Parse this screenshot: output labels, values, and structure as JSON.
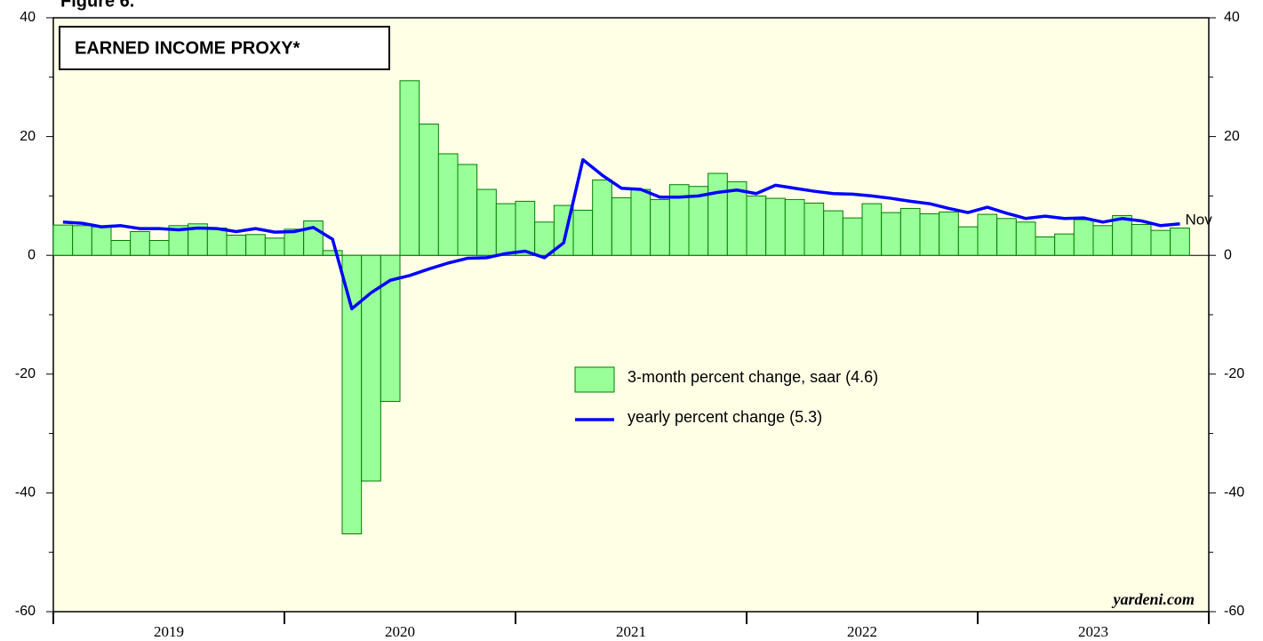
{
  "chart_data": {
    "type": "bar_line",
    "figure_label": "Figure 6.",
    "title": "EARNED INCOME PROXY*",
    "source": "yardeni.com",
    "annotation": "Nov",
    "categories": [
      null,
      null,
      null,
      null,
      null,
      null,
      null,
      null,
      null,
      null,
      null,
      null,
      null,
      null,
      null,
      null,
      null,
      null,
      null,
      null,
      null,
      null,
      null,
      null,
      null,
      null,
      null,
      null,
      null,
      null,
      null,
      null,
      null,
      null,
      null,
      null,
      null,
      null,
      null,
      null,
      null,
      null,
      null,
      null,
      null,
      null,
      null,
      null,
      null,
      null,
      null,
      null,
      null,
      null,
      null,
      null,
      null,
      null,
      null
    ],
    "year_groups": [
      "2019",
      "2020",
      "2021",
      "2022",
      "2023"
    ],
    "months_per_group": 12,
    "ylim": [
      -60,
      40
    ],
    "yticks": [
      -60,
      -40,
      -20,
      0,
      20,
      40
    ],
    "yminorticks": [
      -50,
      -30,
      -10,
      10,
      30
    ],
    "background": "#ffffe6",
    "series": [
      {
        "name": "3-month percent change, saar (4.6)",
        "kind": "bar",
        "color": "#99ff99",
        "edge": "#008000",
        "values": [
          5.1,
          5.0,
          4.8,
          2.5,
          4.0,
          2.5,
          5.0,
          5.3,
          4.6,
          3.4,
          3.5,
          2.9,
          4.4,
          5.8,
          0.8,
          -46.9,
          -38.0,
          -24.6,
          29.4,
          22.1,
          17.1,
          15.3,
          11.1,
          8.7,
          9.1,
          5.6,
          8.4,
          7.6,
          12.7,
          9.7,
          11.1,
          9.4,
          11.9,
          11.6,
          13.8,
          12.4,
          10.0,
          9.6,
          9.4,
          8.8,
          7.5,
          6.3,
          8.7,
          7.2,
          7.9,
          7.0,
          7.3,
          4.8,
          6.9,
          6.2,
          5.6,
          3.1,
          3.6,
          6.0,
          5.0,
          6.7,
          5.2,
          4.2,
          4.6
        ]
      },
      {
        "name": "yearly percent change (5.3)",
        "kind": "line",
        "color": "#0000ff",
        "values": [
          5.6,
          5.4,
          4.8,
          5.0,
          4.5,
          4.5,
          4.3,
          4.6,
          4.5,
          4.0,
          4.5,
          3.9,
          4.0,
          4.7,
          2.7,
          -9.0,
          -6.3,
          -4.2,
          -3.4,
          -2.3,
          -1.3,
          -0.5,
          -0.4,
          0.3,
          0.7,
          -0.4,
          2.1,
          16.1,
          13.5,
          11.3,
          11.1,
          9.8,
          9.8,
          10.0,
          10.6,
          11.0,
          10.4,
          11.8,
          11.3,
          10.8,
          10.4,
          10.3,
          10.0,
          9.6,
          9.1,
          8.7,
          7.9,
          7.2,
          8.1,
          7.1,
          6.2,
          6.6,
          6.2,
          6.3,
          5.6,
          6.2,
          5.8,
          5.0,
          5.3
        ]
      }
    ]
  }
}
